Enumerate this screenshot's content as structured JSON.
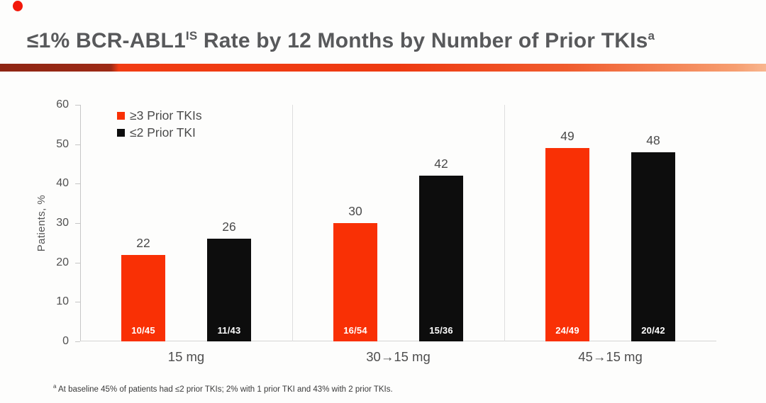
{
  "header": {
    "title_main": "≤1% BCR-ABL1",
    "title_sup": "IS",
    "title_rest": " Rate by 12 Months by Number of Prior TKIs",
    "footnote_marker": "a"
  },
  "chart_data": {
    "type": "bar",
    "title": "≤1% BCR-ABL1^IS Rate by 12 Months by Number of Prior TKIs^a",
    "ylabel": "Patients, %",
    "xlabel": "",
    "ylim": [
      0,
      60
    ],
    "y_ticks": [
      0,
      10,
      20,
      30,
      40,
      50,
      60
    ],
    "grid": false,
    "legend_position": "top-left",
    "categories": [
      "15 mg",
      "30→15 mg",
      "45→15 mg"
    ],
    "series": [
      {
        "name": "≥3 Prior TKIs",
        "color": "#f93005",
        "values": [
          22,
          30,
          49
        ],
        "bar_labels": [
          "10/45",
          "16/54",
          "24/49"
        ]
      },
      {
        "name": "≤2 Prior TKI",
        "color": "#0d0d0d",
        "values": [
          26,
          42,
          48
        ],
        "bar_labels": [
          "11/43",
          "15/36",
          "20/42"
        ]
      }
    ]
  },
  "footnote": {
    "marker": "a",
    "text": " At baseline 45% of patients had ≤2 prior TKIs; 2% with 1 prior TKI and 43% with 2 prior TKIs."
  },
  "colors": {
    "accent_red": "#f93005",
    "bar_black": "#0d0d0d",
    "title_gray": "#58595b",
    "divider_dark": "#9d2a15",
    "divider_bright": "#f13c13",
    "divider_light": "#f8b68f"
  }
}
